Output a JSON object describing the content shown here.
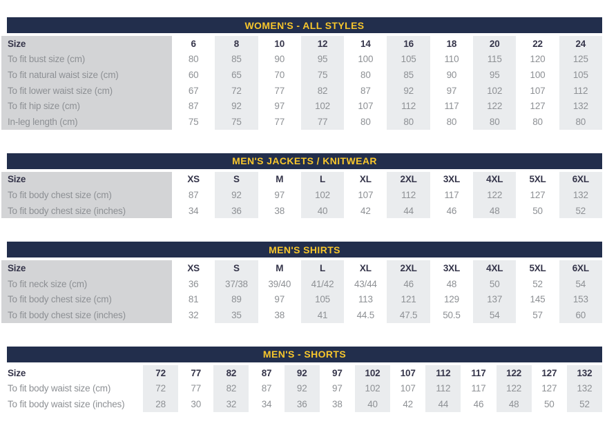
{
  "colors": {
    "header_band_bg": "#222e4c",
    "header_band_text": "#f7c62c",
    "label_column_bg": "#d3d4d6",
    "column_stripe_bg": "#eaecee",
    "heading_text": "#35354a",
    "value_text": "#8d9094"
  },
  "tables": [
    {
      "title": "WOMEN'S - ALL STYLES",
      "size_label": "Size",
      "columns": [
        "6",
        "8",
        "10",
        "12",
        "14",
        "16",
        "18",
        "20",
        "22",
        "24"
      ],
      "rows": [
        {
          "label": "To fit bust size (cm)",
          "values": [
            "80",
            "85",
            "90",
            "95",
            "100",
            "105",
            "110",
            "115",
            "120",
            "125"
          ]
        },
        {
          "label": "To fit natural waist size (cm)",
          "values": [
            "60",
            "65",
            "70",
            "75",
            "80",
            "85",
            "90",
            "95",
            "100",
            "105"
          ]
        },
        {
          "label": "To fit lower waist size (cm)",
          "values": [
            "67",
            "72",
            "77",
            "82",
            "87",
            "92",
            "97",
            "102",
            "107",
            "112"
          ]
        },
        {
          "label": "To fit hip size (cm)",
          "values": [
            "87",
            "92",
            "97",
            "102",
            "107",
            "112",
            "117",
            "122",
            "127",
            "132"
          ]
        },
        {
          "label": "In-leg length (cm)",
          "values": [
            "75",
            "75",
            "77",
            "77",
            "80",
            "80",
            "80",
            "80",
            "80",
            "80"
          ]
        }
      ],
      "stripe_parity": "odd",
      "label_column_shaded": true
    },
    {
      "title": "MEN'S JACKETS / KNITWEAR",
      "size_label": "Size",
      "columns": [
        "XS",
        "S",
        "M",
        "L",
        "XL",
        "2XL",
        "3XL",
        "4XL",
        "5XL",
        "6XL"
      ],
      "rows": [
        {
          "label": "To fit body chest size (cm)",
          "values": [
            "87",
            "92",
            "97",
            "102",
            "107",
            "112",
            "117",
            "122",
            "127",
            "132"
          ]
        },
        {
          "label": "To fit body chest size (inches)",
          "values": [
            "34",
            "36",
            "38",
            "40",
            "42",
            "44",
            "46",
            "48",
            "50",
            "52"
          ]
        }
      ],
      "stripe_parity": "odd",
      "label_column_shaded": true
    },
    {
      "title": "MEN'S SHIRTS",
      "size_label": "Size",
      "columns": [
        "XS",
        "S",
        "M",
        "L",
        "XL",
        "2XL",
        "3XL",
        "4XL",
        "5XL",
        "6XL"
      ],
      "rows": [
        {
          "label": "To fit neck size (cm)",
          "values": [
            "36",
            "37/38",
            "39/40",
            "41/42",
            "43/44",
            "46",
            "48",
            "50",
            "52",
            "54"
          ]
        },
        {
          "label": "To fit body chest size (cm)",
          "values": [
            "81",
            "89",
            "97",
            "105",
            "113",
            "121",
            "129",
            "137",
            "145",
            "153"
          ]
        },
        {
          "label": "To fit body chest size (inches)",
          "values": [
            "32",
            "35",
            "38",
            "41",
            "44.5",
            "47.5",
            "50.5",
            "54",
            "57",
            "60"
          ]
        }
      ],
      "stripe_parity": "odd",
      "label_column_shaded": true
    },
    {
      "title": "MEN'S - SHORTS",
      "size_label": "Size",
      "columns": [
        "72",
        "77",
        "82",
        "87",
        "92",
        "97",
        "102",
        "107",
        "112",
        "117",
        "122",
        "127",
        "132"
      ],
      "rows": [
        {
          "label": "To fit body waist size (cm)",
          "values": [
            "72",
            "77",
            "82",
            "87",
            "92",
            "97",
            "102",
            "107",
            "112",
            "117",
            "122",
            "127",
            "132"
          ]
        },
        {
          "label": "To fit body waist size (inches)",
          "values": [
            "28",
            "30",
            "32",
            "34",
            "36",
            "38",
            "40",
            "42",
            "44",
            "46",
            "48",
            "50",
            "52"
          ]
        }
      ],
      "stripe_parity": "even",
      "label_column_shaded": false
    }
  ]
}
